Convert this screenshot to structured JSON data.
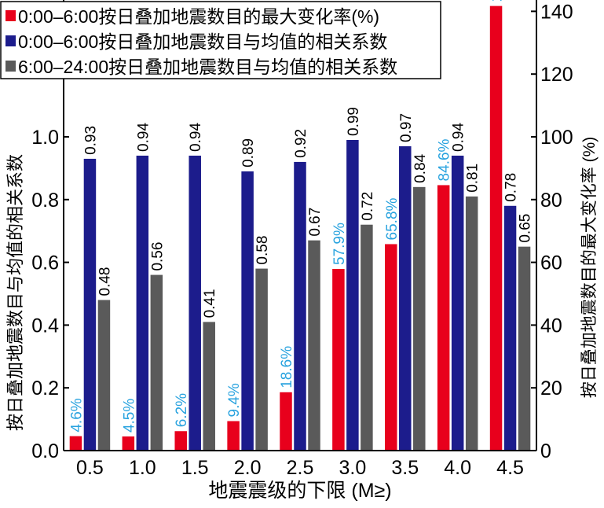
{
  "chart_data": {
    "type": "bar",
    "categories": [
      "0.5",
      "1.0",
      "1.5",
      "2.0",
      "2.5",
      "3.0",
      "3.5",
      "4.0",
      "4.5"
    ],
    "xlabel": "地震震级的下限 (M≥)",
    "ylabel": "按日叠加地震数目与均值的相关系数",
    "y2label": "按日叠加地震数目的最大变化率 (%)",
    "ylim": [
      0,
      1.4
    ],
    "y2lim": [
      0,
      140
    ],
    "yticks": [
      "0.0",
      "0.2",
      "0.4",
      "0.6",
      "0.8",
      "1.0"
    ],
    "y2ticks": [
      "0",
      "20",
      "40",
      "60",
      "80",
      "100",
      "120",
      "140"
    ],
    "legend_position": "top-left",
    "series": [
      {
        "name": "0:00–6:00按日叠加地震数目的最大变化率(%)",
        "axis": "right",
        "color": "#e8001c",
        "label_color": "#29a3df",
        "values": [
          4.6,
          4.5,
          6.2,
          9.4,
          18.6,
          57.9,
          65.8,
          84.6,
          141.7
        ],
        "labels": [
          "4.6%",
          "4.5%",
          "6.2%",
          "9.4%",
          "18.6%",
          "57.9%",
          "65.8%",
          "84.6%",
          "141.7%"
        ]
      },
      {
        "name": "0:00–6:00按日叠加地震数目与均值的相关系数",
        "axis": "left",
        "color": "#1c1c8c",
        "label_color": "#000000",
        "values": [
          0.93,
          0.94,
          0.94,
          0.89,
          0.92,
          0.99,
          0.97,
          0.94,
          0.78
        ],
        "labels": [
          "0.93",
          "0.94",
          "0.94",
          "0.89",
          "0.92",
          "0.99",
          "0.97",
          "0.94",
          "0.78"
        ]
      },
      {
        "name": "6:00–24:00按日叠加地震数目与均值的相关系数",
        "axis": "left",
        "color": "#5a5a5a",
        "label_color": "#000000",
        "values": [
          0.48,
          0.56,
          0.41,
          0.58,
          0.67,
          0.72,
          0.84,
          0.81,
          0.65
        ],
        "labels": [
          "0.48",
          "0.56",
          "0.41",
          "0.58",
          "0.67",
          "0.72",
          "0.84",
          "0.81",
          "0.65"
        ]
      }
    ]
  }
}
